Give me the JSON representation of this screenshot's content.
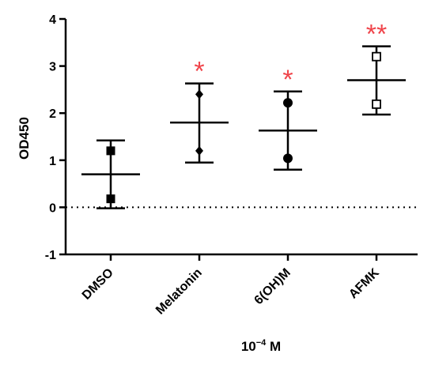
{
  "chart_data": {
    "type": "scatter",
    "ylabel": "OD450",
    "xlabel_base": "10",
    "xlabel_exp": "−4",
    "xlabel_unit": " M",
    "ylim": [
      -1,
      4
    ],
    "yticks": [
      -1,
      0,
      1,
      2,
      3,
      4
    ],
    "ytick_labels": [
      "-1",
      "0",
      "1",
      "2",
      "3",
      "4"
    ],
    "reference_line": 0,
    "grid": false,
    "significance_color": "#f0454b",
    "categories": [
      "DMSO",
      "Melatonin",
      "6(OH)M",
      "AFMK"
    ],
    "groups": [
      {
        "category": "DMSO",
        "marker": "square-filled",
        "points": [
          1.2,
          0.18
        ],
        "mean": 0.7,
        "error_low": -0.02,
        "error_high": 1.42,
        "significance": ""
      },
      {
        "category": "Melatonin",
        "marker": "diamond-filled",
        "points": [
          2.4,
          1.2
        ],
        "mean": 1.8,
        "error_low": 0.95,
        "error_high": 2.63,
        "significance": "*"
      },
      {
        "category": "6(OH)M",
        "marker": "circle-filled",
        "points": [
          2.22,
          1.04
        ],
        "mean": 1.63,
        "error_low": 0.8,
        "error_high": 2.46,
        "significance": "*"
      },
      {
        "category": "AFMK",
        "marker": "square-open",
        "points": [
          3.2,
          2.19
        ],
        "mean": 2.7,
        "error_low": 1.97,
        "error_high": 3.42,
        "significance": "**"
      }
    ]
  }
}
